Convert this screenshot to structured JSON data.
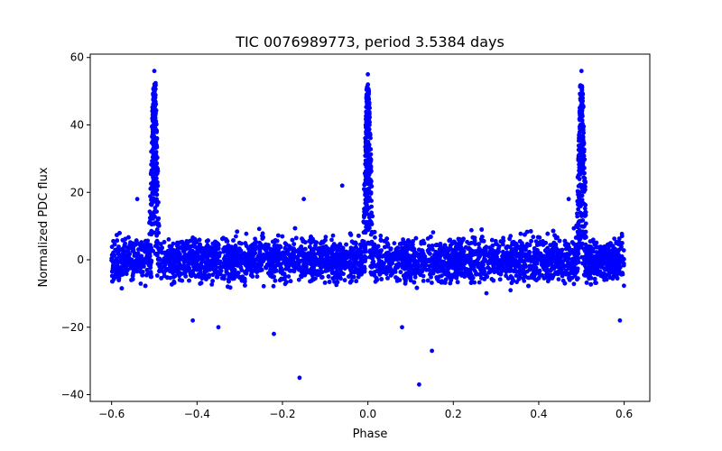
{
  "chart_data": {
    "type": "scatter",
    "title": "TIC 0076989773, period 3.5384 days",
    "xlabel": "Phase",
    "ylabel": "Normalized PDC flux",
    "xlim": [
      -0.65,
      0.66
    ],
    "ylim": [
      -42,
      61
    ],
    "xticks": [
      -0.6,
      -0.4,
      -0.2,
      0.0,
      0.2,
      0.4,
      0.6
    ],
    "xtick_labels": [
      "−0.6",
      "−0.4",
      "−0.2",
      "0.0",
      "0.2",
      "0.4",
      "0.6"
    ],
    "yticks": [
      -40,
      -20,
      0,
      20,
      40,
      60
    ],
    "ytick_labels": [
      "−40",
      "−20",
      "0",
      "20",
      "40",
      "60"
    ],
    "grid": false,
    "series": [
      {
        "name": "flux",
        "color": "#0000ff",
        "marker": "circle",
        "description": "Dense band of points spanning phase -0.6 to 0.6, centred near 0 with spread roughly -12 to +12; sharp peaks near phases -0.5, 0.0 and 0.5 reaching about 56",
        "band": {
          "x_min": -0.6,
          "x_max": 0.6,
          "y_center": 0,
          "y_spread": 12
        },
        "peaks": [
          {
            "x": -0.5,
            "y": 56
          },
          {
            "x": 0.0,
            "y": 55
          },
          {
            "x": 0.5,
            "y": 56
          }
        ],
        "outliers": [
          {
            "x": -0.06,
            "y": 22
          },
          {
            "x": -0.15,
            "y": 18
          },
          {
            "x": -0.22,
            "y": -22
          },
          {
            "x": -0.16,
            "y": -35
          },
          {
            "x": 0.15,
            "y": -27
          },
          {
            "x": 0.12,
            "y": -37
          },
          {
            "x": -0.41,
            "y": -18
          },
          {
            "x": -0.35,
            "y": -20
          },
          {
            "x": 0.08,
            "y": -20
          },
          {
            "x": 0.59,
            "y": -18
          },
          {
            "x": 0.47,
            "y": 18
          },
          {
            "x": -0.54,
            "y": 18
          }
        ]
      }
    ]
  }
}
